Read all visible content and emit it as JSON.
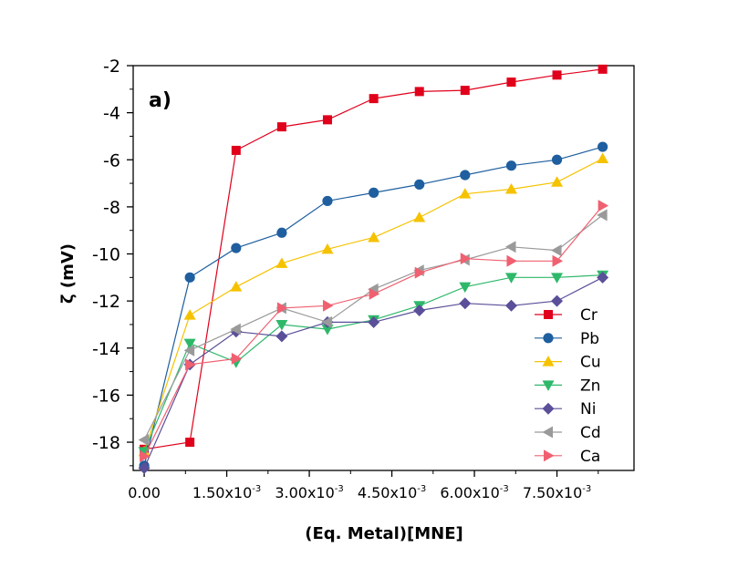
{
  "chart_data": {
    "type": "line",
    "panel_label": "a)",
    "xlabel": "(Eq. Metal)[MNE]",
    "ylabel": "ζ (mV)",
    "xlim": [
      -0.0002,
      0.0089
    ],
    "ylim": [
      -19.2,
      -2.0
    ],
    "x_ticks": [
      {
        "value": 0.0,
        "mant": "0.00",
        "exp": ""
      },
      {
        "value": 0.0015,
        "mant": "1.50x10",
        "exp": "-3"
      },
      {
        "value": 0.003,
        "mant": "3.00x10",
        "exp": "-3"
      },
      {
        "value": 0.0045,
        "mant": "4.50x10",
        "exp": "-3"
      },
      {
        "value": 0.006,
        "mant": "6.00x10",
        "exp": "-3"
      },
      {
        "value": 0.0075,
        "mant": "7.50x10",
        "exp": "-3"
      }
    ],
    "y_ticks": [
      {
        "value": -2,
        "label": "-2"
      },
      {
        "value": -4,
        "label": "-4"
      },
      {
        "value": -6,
        "label": "-6"
      },
      {
        "value": -8,
        "label": "-8"
      },
      {
        "value": -10,
        "label": "-10"
      },
      {
        "value": -12,
        "label": "-12"
      },
      {
        "value": -14,
        "label": "-14"
      },
      {
        "value": -16,
        "label": "-16"
      },
      {
        "value": -18,
        "label": "-18"
      }
    ],
    "grid": false,
    "legend_position": "bottom-right",
    "series": [
      {
        "name": "Cr",
        "color": "#e0001b",
        "marker": "square",
        "x": [
          0.0,
          0.00083,
          0.00167,
          0.0025,
          0.00333,
          0.00417,
          0.005,
          0.00583,
          0.00667,
          0.0075,
          0.00833
        ],
        "y": [
          -18.3,
          -18.0,
          -5.6,
          -4.6,
          -4.3,
          -3.4,
          -3.1,
          -3.05,
          -2.7,
          -2.4,
          -2.15
        ]
      },
      {
        "name": "Pb",
        "color": "#1f5f9f",
        "marker": "circle",
        "x": [
          0.0,
          0.00083,
          0.00167,
          0.0025,
          0.00333,
          0.00417,
          0.005,
          0.00583,
          0.00667,
          0.0075,
          0.00833
        ],
        "y": [
          -19.0,
          -11.0,
          -9.75,
          -9.1,
          -7.75,
          -7.4,
          -7.05,
          -6.65,
          -6.25,
          -6.0,
          -5.45
        ]
      },
      {
        "name": "Cu",
        "color": "#f5c200",
        "marker": "triangle-up",
        "x": [
          0.0,
          0.00083,
          0.00167,
          0.0025,
          0.00333,
          0.00417,
          0.005,
          0.00583,
          0.00667,
          0.0075,
          0.00833
        ],
        "y": [
          -18.4,
          -12.6,
          -11.4,
          -10.4,
          -9.8,
          -9.3,
          -8.45,
          -7.45,
          -7.25,
          -6.95,
          -5.95
        ]
      },
      {
        "name": "Zn",
        "color": "#2eb86a",
        "marker": "triangle-down",
        "x": [
          0.0,
          0.00083,
          0.00167,
          0.0025,
          0.00333,
          0.00417,
          0.005,
          0.00583,
          0.00667,
          0.0075,
          0.00833
        ],
        "y": [
          -18.4,
          -13.8,
          -14.6,
          -13.0,
          -13.2,
          -12.8,
          -12.2,
          -11.4,
          -11.0,
          -11.0,
          -10.9
        ]
      },
      {
        "name": "Ni",
        "color": "#5a4f99",
        "marker": "diamond",
        "x": [
          0.0,
          0.00083,
          0.00167,
          0.0025,
          0.00333,
          0.00417,
          0.005,
          0.00583,
          0.00667,
          0.0075,
          0.00833
        ],
        "y": [
          -19.1,
          -14.7,
          -13.3,
          -13.5,
          -12.9,
          -12.9,
          -12.4,
          -12.1,
          -12.2,
          -12.0,
          -11.0
        ]
      },
      {
        "name": "Cd",
        "color": "#9a9a9a",
        "marker": "triangle-left",
        "x": [
          0.0,
          0.00083,
          0.00167,
          0.0025,
          0.00333,
          0.00417,
          0.005,
          0.00583,
          0.00667,
          0.0075,
          0.00833
        ],
        "y": [
          -17.9,
          -14.1,
          -13.2,
          -12.3,
          -12.9,
          -11.5,
          -10.7,
          -10.25,
          -9.7,
          -9.85,
          -8.35
        ]
      },
      {
        "name": "Ca",
        "color": "#f06070",
        "marker": "triangle-right",
        "x": [
          0.0,
          0.00083,
          0.00167,
          0.0025,
          0.00333,
          0.00417,
          0.005,
          0.00583,
          0.00667,
          0.0075,
          0.00833
        ],
        "y": [
          -18.6,
          -14.7,
          -14.45,
          -12.3,
          -12.2,
          -11.7,
          -10.8,
          -10.2,
          -10.3,
          -10.3,
          -7.95
        ]
      }
    ]
  }
}
